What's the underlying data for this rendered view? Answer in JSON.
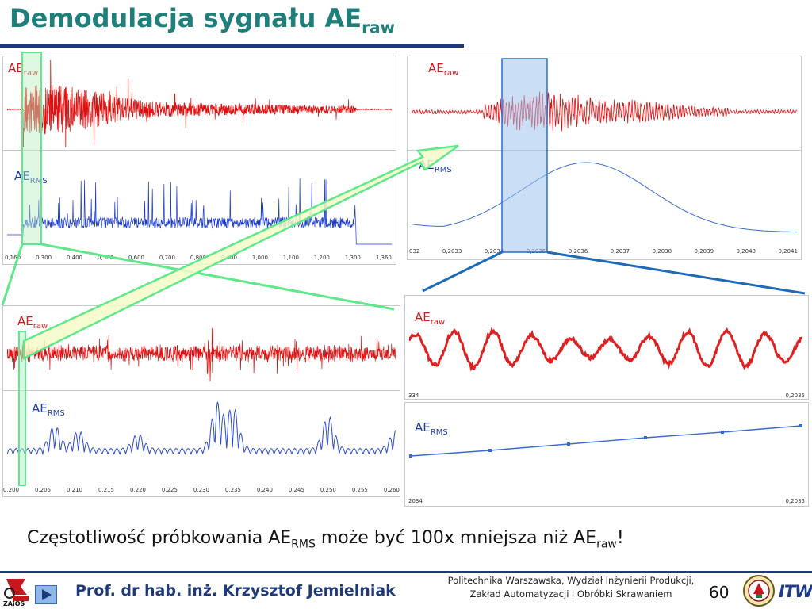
{
  "title": {
    "main": "Demodulacja sygnału AE",
    "sub": "raw"
  },
  "labels": {
    "ae": "AE",
    "raw": "raw",
    "rms": "RMS"
  },
  "panels": {
    "p1_ticks": [
      "0,160",
      "0,300",
      "0,400",
      "0,500",
      "0,600",
      "0,700",
      "0,800",
      "0,900",
      "1,000",
      "1,100",
      "1,200",
      "1,300",
      "1,360"
    ],
    "p2_ticks": [
      "032",
      "0,2033",
      "0,2034",
      "0,2035",
      "0,2036",
      "0,2037",
      "0,2038",
      "0,2039",
      "0,2040",
      "0,2041"
    ],
    "p3_ticks": [
      "0,200",
      "0,205",
      "0,210",
      "0,215",
      "0,220",
      "0,225",
      "0,230",
      "0,235",
      "0,240",
      "0,245",
      "0,250",
      "0,255",
      "0,260"
    ],
    "p4a_ticks": [
      "334",
      "0,2035"
    ],
    "p4b_ticks": [
      "2034",
      "0,2035"
    ]
  },
  "caption": {
    "pre": "Częstotliwość próbkowania AE",
    "rms": "RMS",
    "mid": " może być 100x mniejsza niż AE",
    "raw": "raw",
    "end": "!"
  },
  "footer": {
    "author": "Prof. dr hab. inż. Krzysztof Jemielniak",
    "inst1": "Politechnika Warszawska, Wydział Inżynierii Produkcji,",
    "inst2": "Zakład Automatyzacji i Obróbki Skrawaniem",
    "page": "60",
    "logo_left": "ZAiOS",
    "logo_right": "ITW"
  },
  "colors": {
    "raw": "#e01010",
    "rms": "#1a3acc",
    "title": "#1f7f7a",
    "arrow": "#5fe88a"
  }
}
